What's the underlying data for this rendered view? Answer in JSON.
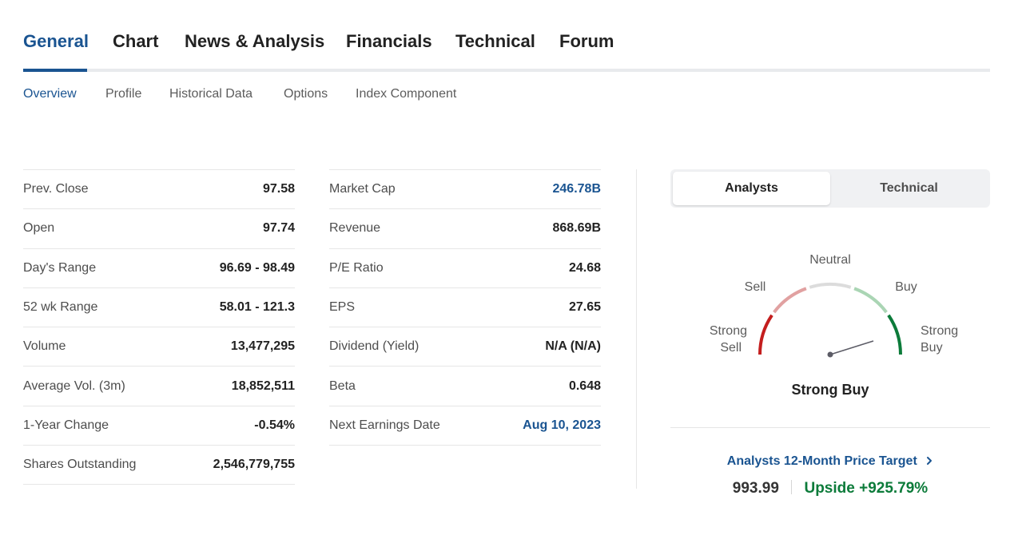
{
  "main_tabs": [
    {
      "label": "General",
      "active": true
    },
    {
      "label": "Chart"
    },
    {
      "label": "News & Analysis"
    },
    {
      "label": "Financials"
    },
    {
      "label": "Technical"
    },
    {
      "label": "Forum"
    }
  ],
  "sub_tabs": [
    {
      "label": "Overview",
      "active": true
    },
    {
      "label": "Profile"
    },
    {
      "label": "Historical Data"
    },
    {
      "label": "Options"
    },
    {
      "label": "Index Component"
    }
  ],
  "stats_left": [
    {
      "label": "Prev. Close",
      "value": "97.58"
    },
    {
      "label": "Open",
      "value": "97.74"
    },
    {
      "label": "Day's Range",
      "value": "96.69 - 98.49"
    },
    {
      "label": "52 wk Range",
      "value": "58.01 - 121.3"
    },
    {
      "label": "Volume",
      "value": "13,477,295"
    },
    {
      "label": "Average Vol. (3m)",
      "value": "18,852,511"
    },
    {
      "label": "1-Year Change",
      "value": "-0.54%"
    },
    {
      "label": "Shares Outstanding",
      "value": "2,546,779,755"
    }
  ],
  "stats_right": [
    {
      "label": "Market Cap",
      "value": "246.78B"
    },
    {
      "label": "Revenue",
      "value": "868.69B"
    },
    {
      "label": "P/E Ratio",
      "value": "24.68"
    },
    {
      "label": "EPS",
      "value": "27.65"
    },
    {
      "label": "Dividend (Yield)",
      "value": "N/A (N/A)"
    },
    {
      "label": "Beta",
      "value": "0.648"
    },
    {
      "label": "Next Earnings Date",
      "value": "Aug 10, 2023"
    }
  ],
  "analyst_panel": {
    "segments": [
      "Analysts",
      "Technical"
    ],
    "gauge_labels": {
      "strong_sell_1": "Strong",
      "strong_sell_2": "Sell",
      "sell": "Sell",
      "neutral": "Neutral",
      "buy": "Buy",
      "strong_buy_1": "Strong",
      "strong_buy_2": "Buy"
    },
    "gauge_result": "Strong Buy",
    "colors": {
      "strong_sell": "#c41e1e",
      "sell": "#e1a1a1",
      "neutral": "#dcdcdc",
      "buy": "#aad5b4",
      "strong_buy": "#0c7b3a",
      "needle": "#5c5c66"
    },
    "price_target_link": "Analysts 12-Month Price Target",
    "chevron_icon": "chevron-right-icon",
    "price_target": "993.99",
    "upside": "Upside +925.79%"
  }
}
